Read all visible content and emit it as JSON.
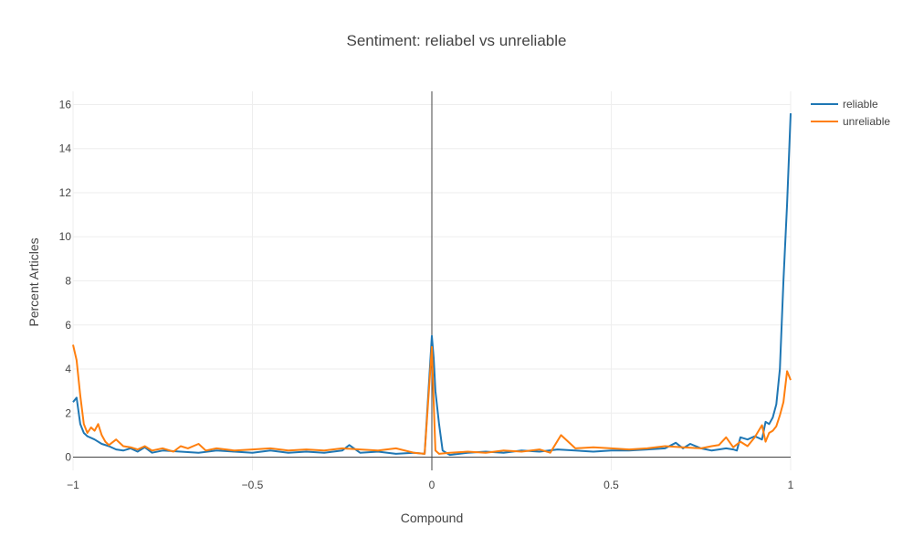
{
  "chart_data": {
    "type": "line",
    "title": "Sentiment: reliabel vs unreliable",
    "xlabel": "Compound",
    "ylabel": "Percent Articles",
    "xlim": [
      -1,
      1
    ],
    "ylim": [
      -0.6,
      16.6
    ],
    "xticks": [
      -1,
      -0.5,
      0,
      0.5,
      1
    ],
    "xtick_labels": [
      "−1",
      "−0.5",
      "0",
      "0.5",
      "1"
    ],
    "yticks": [
      0,
      2,
      4,
      6,
      8,
      10,
      12,
      14,
      16
    ],
    "ytick_labels": [
      "0",
      "2",
      "4",
      "6",
      "8",
      "10",
      "12",
      "14",
      "16"
    ],
    "grid": true,
    "legend_position": "top-right",
    "series": [
      {
        "name": "reliable",
        "color": "#1f77b4",
        "x": [
          -1.0,
          -0.99,
          -0.98,
          -0.97,
          -0.96,
          -0.94,
          -0.92,
          -0.9,
          -0.88,
          -0.86,
          -0.84,
          -0.82,
          -0.8,
          -0.78,
          -0.75,
          -0.7,
          -0.65,
          -0.6,
          -0.55,
          -0.5,
          -0.45,
          -0.4,
          -0.35,
          -0.3,
          -0.25,
          -0.23,
          -0.2,
          -0.15,
          -0.1,
          -0.05,
          -0.02,
          0.0,
          0.005,
          0.01,
          0.02,
          0.03,
          0.05,
          0.1,
          0.15,
          0.2,
          0.25,
          0.3,
          0.35,
          0.4,
          0.45,
          0.5,
          0.55,
          0.6,
          0.65,
          0.68,
          0.7,
          0.72,
          0.75,
          0.78,
          0.8,
          0.82,
          0.84,
          0.85,
          0.86,
          0.88,
          0.9,
          0.92,
          0.93,
          0.94,
          0.95,
          0.96,
          0.97,
          0.98,
          0.99,
          1.0
        ],
        "y": [
          2.5,
          2.7,
          1.5,
          1.1,
          0.95,
          0.8,
          0.6,
          0.5,
          0.35,
          0.3,
          0.4,
          0.25,
          0.45,
          0.2,
          0.3,
          0.25,
          0.2,
          0.3,
          0.25,
          0.2,
          0.3,
          0.2,
          0.25,
          0.2,
          0.3,
          0.55,
          0.2,
          0.25,
          0.15,
          0.2,
          0.15,
          5.5,
          4.5,
          3.0,
          1.5,
          0.3,
          0.1,
          0.2,
          0.25,
          0.2,
          0.3,
          0.25,
          0.35,
          0.3,
          0.25,
          0.3,
          0.3,
          0.35,
          0.4,
          0.65,
          0.4,
          0.6,
          0.4,
          0.3,
          0.35,
          0.4,
          0.35,
          0.3,
          0.9,
          0.8,
          0.95,
          0.8,
          1.6,
          1.5,
          1.8,
          2.4,
          4.0,
          8.0,
          11.5,
          15.6
        ]
      },
      {
        "name": "unreliable",
        "color": "#ff7f0e",
        "x": [
          -1.0,
          -0.99,
          -0.98,
          -0.97,
          -0.96,
          -0.95,
          -0.94,
          -0.93,
          -0.92,
          -0.91,
          -0.9,
          -0.88,
          -0.86,
          -0.84,
          -0.82,
          -0.8,
          -0.78,
          -0.75,
          -0.72,
          -0.7,
          -0.68,
          -0.65,
          -0.63,
          -0.6,
          -0.55,
          -0.5,
          -0.45,
          -0.4,
          -0.35,
          -0.3,
          -0.25,
          -0.2,
          -0.15,
          -0.1,
          -0.05,
          -0.02,
          0.0,
          0.005,
          0.01,
          0.02,
          0.05,
          0.1,
          0.15,
          0.2,
          0.25,
          0.3,
          0.33,
          0.36,
          0.4,
          0.45,
          0.5,
          0.55,
          0.6,
          0.65,
          0.7,
          0.75,
          0.78,
          0.8,
          0.82,
          0.84,
          0.86,
          0.88,
          0.9,
          0.92,
          0.93,
          0.94,
          0.95,
          0.96,
          0.97,
          0.98,
          0.99,
          1.0
        ],
        "y": [
          5.1,
          4.4,
          2.8,
          1.5,
          1.1,
          1.35,
          1.2,
          1.5,
          1.0,
          0.7,
          0.55,
          0.8,
          0.5,
          0.45,
          0.35,
          0.5,
          0.3,
          0.4,
          0.25,
          0.5,
          0.4,
          0.6,
          0.3,
          0.4,
          0.3,
          0.35,
          0.4,
          0.3,
          0.35,
          0.3,
          0.4,
          0.35,
          0.3,
          0.4,
          0.2,
          0.15,
          5.0,
          2.5,
          0.3,
          0.15,
          0.2,
          0.25,
          0.2,
          0.3,
          0.25,
          0.35,
          0.2,
          1.0,
          0.4,
          0.45,
          0.4,
          0.35,
          0.4,
          0.5,
          0.45,
          0.4,
          0.5,
          0.55,
          0.9,
          0.45,
          0.7,
          0.5,
          0.9,
          1.45,
          0.7,
          1.1,
          1.2,
          1.4,
          1.9,
          2.5,
          3.9,
          3.5
        ]
      }
    ]
  }
}
